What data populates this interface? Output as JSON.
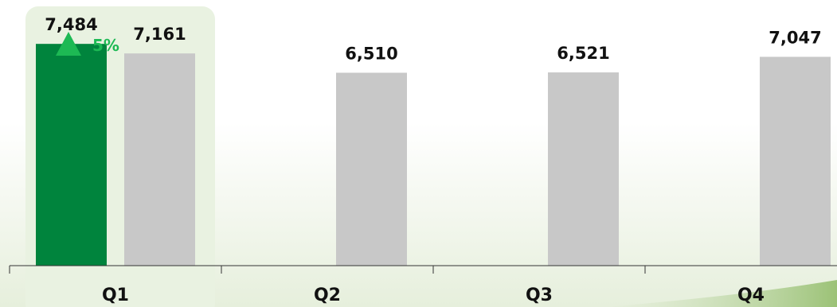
{
  "colors": {
    "current_bar": "#00843d",
    "prior_bar": "#c8c8c8",
    "highlight_panel": "#e9f2e1",
    "change_up": "#1db954",
    "axis": "#333333",
    "text": "#111111"
  },
  "chart_data": {
    "type": "bar",
    "title": "",
    "xlabel": "",
    "ylabel": "",
    "categories": [
      "Q1",
      "Q2",
      "Q3",
      "Q4"
    ],
    "series": [
      {
        "values": [
          7484,
          null,
          null,
          null
        ]
      },
      {
        "values": [
          7161,
          6510,
          6521,
          7047
        ]
      }
    ],
    "value_labels": {
      "current": [
        "7,484",
        "",
        "",
        ""
      ],
      "prior": [
        "7,161",
        "6,510",
        "6,521",
        "7,047"
      ]
    },
    "highlight_category": "Q1",
    "change_indicator": {
      "category": "Q1",
      "direction": "up",
      "icon": "up-triangle-icon",
      "label": "5%"
    },
    "ylim": [
      0,
      8750
    ],
    "grid": false,
    "legend": "none"
  }
}
